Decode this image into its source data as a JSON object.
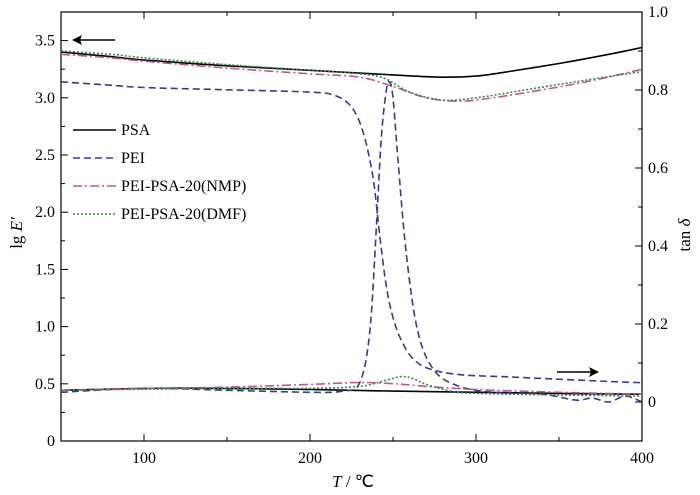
{
  "chart_data": {
    "type": "line",
    "title": "",
    "xlabel_symbol": "T",
    "xlabel_unit": " / ℃",
    "ylabel_left_prefix": "lg ",
    "ylabel_left_symbol": "E′",
    "ylabel_right_prefix": "tan ",
    "ylabel_right_symbol": "δ",
    "xlim": [
      50,
      400
    ],
    "ylim_left": [
      0,
      3.75
    ],
    "ylim_right": [
      -0.1,
      1.0
    ],
    "x_ticks": [
      100,
      200,
      300,
      400
    ],
    "y_left_ticks": [
      "0",
      "0.5",
      "1.0",
      "1.5",
      "2.0",
      "2.5",
      "3.0",
      "3.5"
    ],
    "y_left_tick_values": [
      0,
      0.5,
      1.0,
      1.5,
      2.0,
      2.5,
      3.0,
      3.5
    ],
    "y_right_ticks": [
      "0",
      "0.2",
      "0.4",
      "0.6",
      "0.8",
      "1.0"
    ],
    "y_right_tick_values": [
      0,
      0.2,
      0.4,
      0.6,
      0.8,
      1.0
    ],
    "legend": [
      "PSA",
      "PEI",
      "PEI-PSA-20(NMP)",
      "PEI-PSA-20(DMF)"
    ],
    "legend_position": "upper-left",
    "annotations": [
      "arrow-left: lg E′ curves (left axis)",
      "arrow-right: tan δ curves (right axis)"
    ],
    "series": [
      {
        "name": "PSA",
        "axis": "left",
        "quantity": "lg E′",
        "color": "#000000",
        "dash": "solid",
        "x": [
          50,
          80,
          100,
          150,
          200,
          250,
          280,
          300,
          320,
          350,
          380,
          400
        ],
        "y": [
          3.4,
          3.36,
          3.33,
          3.28,
          3.24,
          3.2,
          3.18,
          3.19,
          3.23,
          3.3,
          3.38,
          3.44
        ]
      },
      {
        "name": "PEI",
        "axis": "left",
        "quantity": "lg E′",
        "color": "#3a3a8c",
        "dash": "dashed",
        "x": [
          50,
          80,
          100,
          150,
          200,
          215,
          225,
          232,
          238,
          242,
          246,
          250,
          255,
          262,
          272,
          290,
          320,
          350,
          380,
          400
        ],
        "y": [
          3.14,
          3.11,
          3.09,
          3.07,
          3.05,
          3.02,
          2.92,
          2.7,
          2.3,
          1.8,
          1.35,
          1.08,
          0.88,
          0.72,
          0.63,
          0.58,
          0.56,
          0.54,
          0.52,
          0.51
        ]
      },
      {
        "name": "PEI-PSA-20(NMP)",
        "axis": "left",
        "quantity": "lg E′",
        "color": "#c0548f",
        "dash": "dashdot",
        "x": [
          50,
          80,
          100,
          150,
          200,
          230,
          250,
          270,
          290,
          310,
          340,
          370,
          400
        ],
        "y": [
          3.38,
          3.35,
          3.32,
          3.26,
          3.21,
          3.18,
          3.1,
          3.0,
          2.97,
          3.0,
          3.07,
          3.15,
          3.25
        ]
      },
      {
        "name": "PEI-PSA-20(DMF)",
        "axis": "left",
        "quantity": "lg E′",
        "color": "#2e8b3e",
        "dash": "dotted",
        "x": [
          50,
          80,
          100,
          150,
          200,
          230,
          245,
          260,
          280,
          300,
          330,
          360,
          400
        ],
        "y": [
          3.41,
          3.38,
          3.35,
          3.29,
          3.24,
          3.21,
          3.17,
          3.05,
          2.98,
          3.0,
          3.07,
          3.14,
          3.23
        ]
      },
      {
        "name": "PSA",
        "axis": "right",
        "quantity": "tan δ",
        "color": "#000000",
        "dash": "solid",
        "x": [
          50,
          100,
          150,
          200,
          250,
          300,
          350,
          400
        ],
        "y": [
          0.03,
          0.035,
          0.035,
          0.032,
          0.028,
          0.025,
          0.022,
          0.02
        ]
      },
      {
        "name": "PEI",
        "axis": "right",
        "quantity": "tan δ",
        "color": "#3a3a8c",
        "dash": "dashed",
        "x": [
          50,
          100,
          150,
          200,
          220,
          230,
          236,
          240,
          243,
          246,
          248,
          250,
          253,
          258,
          265,
          275,
          290,
          310,
          340,
          360,
          370,
          380,
          390,
          400
        ],
        "y": [
          0.025,
          0.035,
          0.03,
          0.025,
          0.028,
          0.05,
          0.18,
          0.45,
          0.68,
          0.8,
          0.82,
          0.78,
          0.62,
          0.38,
          0.18,
          0.08,
          0.04,
          0.025,
          0.02,
          0.005,
          0.01,
          0.0,
          0.015,
          0.0
        ]
      },
      {
        "name": "PEI-PSA-20(NMP)",
        "axis": "right",
        "quantity": "tan δ",
        "color": "#c0548f",
        "dash": "dashdot",
        "x": [
          50,
          100,
          150,
          200,
          230,
          250,
          270,
          300,
          350,
          400
        ],
        "y": [
          0.03,
          0.035,
          0.038,
          0.045,
          0.05,
          0.047,
          0.04,
          0.032,
          0.025,
          0.02
        ]
      },
      {
        "name": "PEI-PSA-20(DMF)",
        "axis": "right",
        "quantity": "tan δ",
        "color": "#2e8b3e",
        "dash": "dotted",
        "x": [
          50,
          100,
          150,
          200,
          230,
          245,
          255,
          262,
          270,
          285,
          300,
          350,
          400
        ],
        "y": [
          0.03,
          0.033,
          0.035,
          0.035,
          0.04,
          0.055,
          0.065,
          0.06,
          0.045,
          0.028,
          0.022,
          0.018,
          0.015
        ]
      }
    ]
  }
}
